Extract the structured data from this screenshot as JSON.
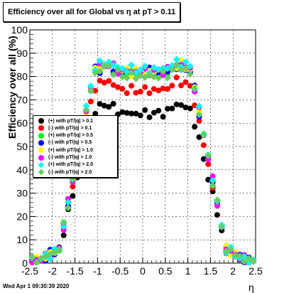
{
  "title": "Efficiency over all for Global vs   η at pT > 0.11",
  "ylabel": "Efficiency over all (%)",
  "xlabel": "η",
  "date": "Wed Apr  1 09:30:39 2020",
  "chart_data": {
    "type": "scatter",
    "xlim": [
      -2.5,
      2.5
    ],
    "ylim": [
      0,
      100
    ],
    "xticks": [
      "-2.5",
      "-2",
      "-1.5",
      "-1",
      "-0.5",
      "0",
      "0.5",
      "1",
      "1.5",
      "2",
      "2.5"
    ],
    "yticks": [
      "0",
      "10",
      "20",
      "30",
      "40",
      "50",
      "60",
      "70",
      "80",
      "90",
      "100"
    ],
    "grid": true,
    "legend_position": "left-center",
    "series": [
      {
        "name": "(+) with pT/|q| > 0.1",
        "color": "#000000",
        "marker": "circle",
        "plateau": 68,
        "dip": 64
      },
      {
        "name": "(-) with pT/|q| > 0.1",
        "color": "#ff0000",
        "marker": "circle",
        "plateau": 78,
        "dip": 74
      },
      {
        "name": "(+) with pT/|q| > 0.5",
        "color": "#00ff00",
        "marker": "circle",
        "plateau": 84,
        "dip": 81
      },
      {
        "name": "(-) with pT/|q| > 0.5",
        "color": "#0000ff",
        "marker": "circle",
        "plateau": 84,
        "dip": 82
      },
      {
        "name": "(+) with pT/|q| > 1.0",
        "color": "#ffff00",
        "marker": "circle",
        "plateau": 85,
        "dip": 82
      },
      {
        "name": "(-) with pT/|q| > 1.0",
        "color": "#ff00ff",
        "marker": "circle",
        "plateau": 85,
        "dip": 82
      },
      {
        "name": "(+) with pT/|q| > 2.0",
        "color": "#00ffff",
        "marker": "diamond",
        "plateau": 86,
        "dip": 83
      },
      {
        "name": "(-) with pT/|q| > 2.0",
        "color": "#66cc66",
        "marker": "diamond",
        "plateau": 84,
        "dip": 80
      }
    ]
  }
}
